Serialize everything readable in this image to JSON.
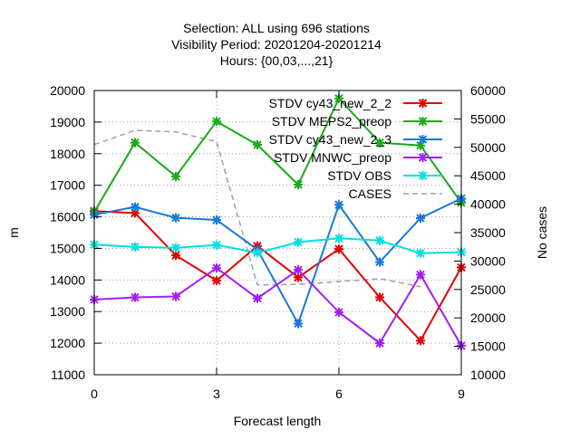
{
  "chart_data": {
    "type": "line",
    "title_lines": [
      "Selection: ALL using   696 stations",
      "Visibility   Period: 20201204-20201214",
      "Hours: {00,03,...,21}"
    ],
    "xlabel": "Forecast length",
    "ylabel": "m",
    "y2label": "No cases",
    "xlim": [
      0,
      9
    ],
    "ylim": [
      11000,
      20000
    ],
    "y2lim": [
      10000,
      60000
    ],
    "xticks": [
      0,
      3,
      6,
      9
    ],
    "yticks": [
      11000,
      12000,
      13000,
      14000,
      15000,
      16000,
      17000,
      18000,
      19000,
      20000
    ],
    "y2ticks": [
      10000,
      15000,
      20000,
      25000,
      30000,
      35000,
      40000,
      45000,
      50000,
      55000,
      60000
    ],
    "grid": true,
    "legend_position": "top-right",
    "x": [
      0,
      1,
      2,
      3,
      4,
      5,
      6,
      7,
      8,
      9
    ],
    "series": [
      {
        "name": "STDV cy43_new_2_2",
        "color": "#e00000",
        "axis": "y",
        "marker": true,
        "values": [
          16180,
          16120,
          14780,
          13980,
          15080,
          14080,
          14980,
          13450,
          12080,
          14400
        ]
      },
      {
        "name": "STDV MEPS2_preop",
        "color": "#1aab1a",
        "axis": "y",
        "marker": true,
        "values": [
          16150,
          18350,
          17280,
          19020,
          18280,
          17020,
          19750,
          18350,
          18260,
          16450
        ]
      },
      {
        "name": "STDV cy43_new_2_3",
        "color": "#1a78d8",
        "axis": "y",
        "marker": true,
        "values": [
          16070,
          16310,
          15970,
          15900,
          14960,
          12620,
          16380,
          14570,
          15960,
          16580
        ]
      },
      {
        "name": "STDV MNWC_preop",
        "color": "#a020f0",
        "axis": "y",
        "marker": true,
        "values": [
          13380,
          13450,
          13480,
          14380,
          13420,
          14320,
          12980,
          12000,
          14170,
          11920
        ]
      },
      {
        "name": "STDV OBS",
        "color": "#00e0e0",
        "axis": "y",
        "marker": true,
        "values": [
          15120,
          15050,
          15020,
          15110,
          14860,
          15200,
          15320,
          15250,
          14850,
          14880
        ]
      },
      {
        "name": "CASES",
        "color": "#a0a0a0",
        "axis": "y2",
        "marker": false,
        "dashed": true,
        "values": [
          50500,
          53000,
          52700,
          51000,
          25800,
          25900,
          26400,
          26900,
          25500,
          null
        ]
      }
    ]
  }
}
